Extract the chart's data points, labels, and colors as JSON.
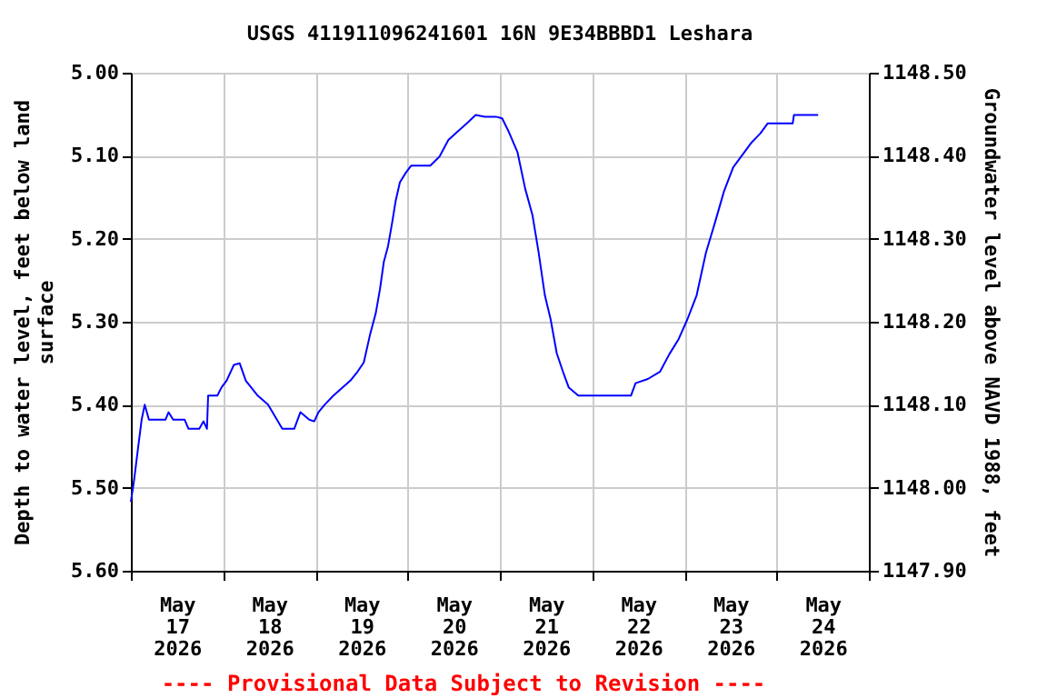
{
  "chart_data": {
    "type": "line",
    "title": "USGS 411911096241601 16N  9E34BBBD1 Leshara",
    "ylabel": "Depth to water level, feet below land surface",
    "y2label": "Groundwater level above NAVD 1988, feet",
    "annotations": [
      "---- Provisional Data Subject to Revision ----"
    ],
    "x": [
      "2026-05-17T00:00",
      "2026-05-17T00:48",
      "2026-05-17T01:54",
      "2026-05-17T02:48",
      "2026-05-17T03:36",
      "2026-05-17T04:42",
      "2026-05-17T09:00",
      "2026-05-17T09:48",
      "2026-05-17T11:00",
      "2026-05-17T14:00",
      "2026-05-17T15:00",
      "2026-05-17T17:48",
      "2026-05-17T18:54",
      "2026-05-17T19:48",
      "2026-05-17T20:06",
      "2026-05-17T22:30",
      "2026-05-17T23:36",
      "2026-05-18T00:54",
      "2026-05-18T02:48",
      "2026-05-18T04:18",
      "2026-05-18T05:54",
      "2026-05-18T09:00",
      "2026-05-18T11:42",
      "2026-05-18T15:24",
      "2026-05-18T18:30",
      "2026-05-18T20:06",
      "2026-05-18T22:24",
      "2026-05-18T23:42",
      "2026-05-19T00:48",
      "2026-05-19T02:24",
      "2026-05-19T04:42",
      "2026-05-19T07:06",
      "2026-05-19T09:06",
      "2026-05-19T11:00",
      "2026-05-19T12:36",
      "2026-05-19T14:12",
      "2026-05-19T15:42",
      "2026-05-19T16:48",
      "2026-05-19T17:48",
      "2026-05-19T18:54",
      "2026-05-19T20:00",
      "2026-05-19T20:54",
      "2026-05-19T22:00",
      "2026-05-19T23:36",
      "2026-05-20T00:54",
      "2026-05-20T02:48",
      "2026-05-20T05:54",
      "2026-05-20T08:18",
      "2026-05-20T10:36",
      "2026-05-20T13:00",
      "2026-05-20T15:24",
      "2026-05-20T17:42",
      "2026-05-20T20:06",
      "2026-05-20T23:00",
      "2026-05-21T00:36",
      "2026-05-21T02:12",
      "2026-05-21T04:36",
      "2026-05-21T06:36",
      "2026-05-21T08:30",
      "2026-05-21T10:06",
      "2026-05-21T11:42",
      "2026-05-21T13:12",
      "2026-05-21T14:48",
      "2026-05-21T16:24",
      "2026-05-21T17:54",
      "2026-05-21T20:24",
      "2026-05-22T00:18",
      "2026-05-22T10:06",
      "2026-05-22T11:18",
      "2026-05-22T14:30",
      "2026-05-22T17:42",
      "2026-05-22T20:06",
      "2026-05-22T22:30",
      "2026-05-23T00:48",
      "2026-05-23T03:12",
      "2026-05-23T05:36",
      "2026-05-23T08:00",
      "2026-05-23T10:18",
      "2026-05-23T12:42",
      "2026-05-23T15:06",
      "2026-05-23T17:30",
      "2026-05-23T19:48",
      "2026-05-23T21:42",
      "2026-05-24T04:12",
      "2026-05-24T04:30",
      "2026-05-24T10:48"
    ],
    "series": [
      {
        "color": "#0000ff",
        "values": [
          5.517,
          5.492,
          5.451,
          5.418,
          5.4,
          5.418,
          5.418,
          5.409,
          5.418,
          5.418,
          5.429,
          5.429,
          5.42,
          5.429,
          5.389,
          5.389,
          5.379,
          5.371,
          5.352,
          5.35,
          5.371,
          5.389,
          5.4,
          5.429,
          5.429,
          5.409,
          5.418,
          5.42,
          5.409,
          5.4,
          5.389,
          5.379,
          5.371,
          5.36,
          5.349,
          5.316,
          5.29,
          5.261,
          5.228,
          5.209,
          5.18,
          5.154,
          5.132,
          5.12,
          5.112,
          5.112,
          5.112,
          5.101,
          5.081,
          5.071,
          5.061,
          5.051,
          5.053,
          5.053,
          5.055,
          5.07,
          5.096,
          5.14,
          5.172,
          5.217,
          5.268,
          5.297,
          5.338,
          5.36,
          5.379,
          5.389,
          5.389,
          5.389,
          5.374,
          5.369,
          5.36,
          5.339,
          5.321,
          5.297,
          5.268,
          5.217,
          5.18,
          5.143,
          5.114,
          5.099,
          5.084,
          5.073,
          5.061,
          5.061,
          5.051,
          5.051
        ]
      }
    ],
    "xlim": [
      "2026-05-17T00:00",
      "2026-05-25T00:00"
    ],
    "xticks": [
      {
        "value": "2026-05-17T00:00",
        "label": null
      },
      {
        "value": "2026-05-17T12:00",
        "label": "May 17 2026"
      },
      {
        "value": "2026-05-18T00:00",
        "label": null
      },
      {
        "value": "2026-05-18T12:00",
        "label": "May 18 2026"
      },
      {
        "value": "2026-05-19T00:00",
        "label": null
      },
      {
        "value": "2026-05-19T12:00",
        "label": "May 19 2026"
      },
      {
        "value": "2026-05-20T00:00",
        "label": null
      },
      {
        "value": "2026-05-20T12:00",
        "label": "May 20 2026"
      },
      {
        "value": "2026-05-21T00:00",
        "label": null
      },
      {
        "value": "2026-05-21T12:00",
        "label": "May 21 2026"
      },
      {
        "value": "2026-05-22T00:00",
        "label": null
      },
      {
        "value": "2026-05-22T12:00",
        "label": "May 22 2026"
      },
      {
        "value": "2026-05-23T00:00",
        "label": null
      },
      {
        "value": "2026-05-23T12:00",
        "label": "May 23 2026"
      },
      {
        "value": "2026-05-24T00:00",
        "label": null
      },
      {
        "value": "2026-05-24T12:00",
        "label": "May 24 2026"
      },
      {
        "value": "2026-05-25T00:00",
        "label": null
      }
    ],
    "ylim": [
      5.6,
      5.0
    ],
    "yticks": [
      {
        "value": 5.0,
        "label": "5.00"
      },
      {
        "value": 5.1,
        "label": "5.10"
      },
      {
        "value": 5.2,
        "label": "5.20"
      },
      {
        "value": 5.3,
        "label": "5.30"
      },
      {
        "value": 5.4,
        "label": "5.40"
      },
      {
        "value": 5.5,
        "label": "5.50"
      },
      {
        "value": 5.6,
        "label": "5.60"
      }
    ],
    "y2lim": [
      1147.9,
      1148.5
    ],
    "y2ticks": [
      {
        "value": 1147.9,
        "label": "1147.90"
      },
      {
        "value": 1148.0,
        "label": "1148.00"
      },
      {
        "value": 1148.1,
        "label": "1148.10"
      },
      {
        "value": 1148.2,
        "label": "1148.20"
      },
      {
        "value": 1148.3,
        "label": "1148.30"
      },
      {
        "value": 1148.4,
        "label": "1148.40"
      },
      {
        "value": 1148.5,
        "label": "1148.50"
      }
    ],
    "grid": true,
    "marker": "none",
    "line_style": "solid"
  }
}
